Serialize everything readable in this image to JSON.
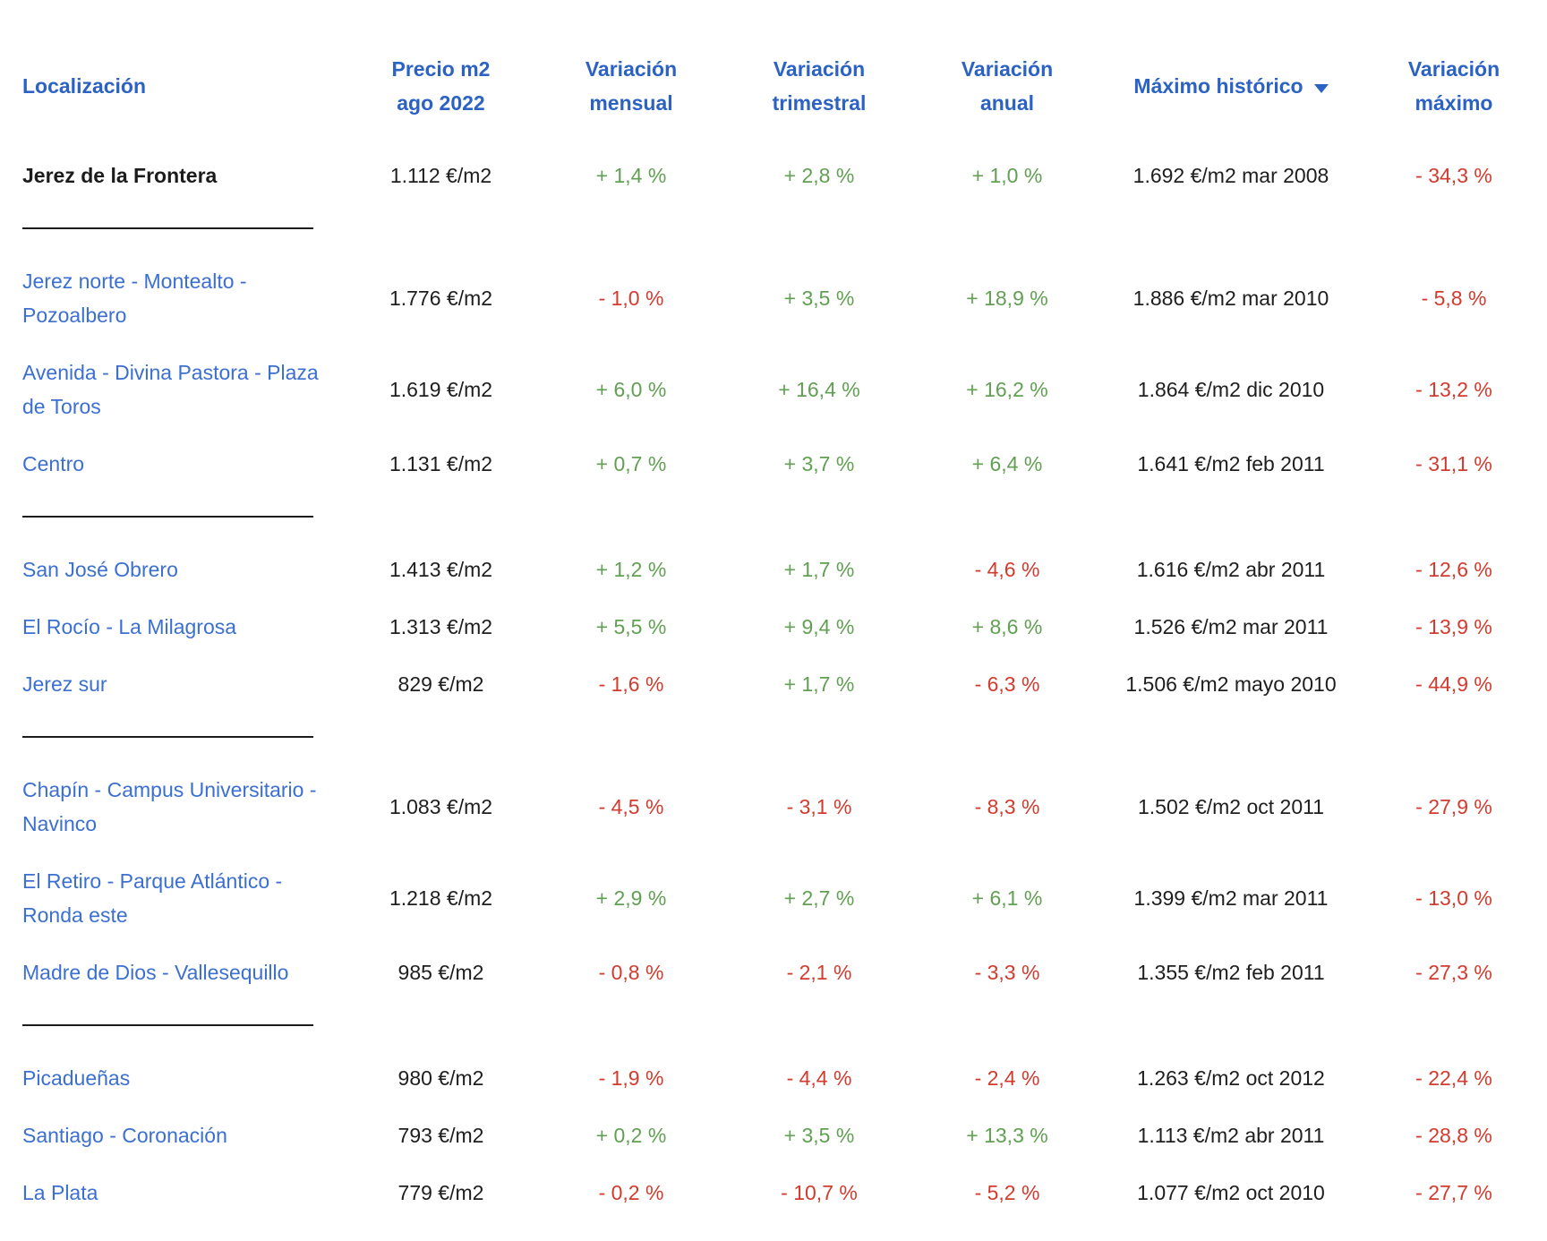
{
  "colors": {
    "header_blue": "#2b62c4",
    "link_blue": "#3b6fd1",
    "positive_green": "#61a052",
    "negative_red": "#d23b2e",
    "text_dark": "#1e1e1e"
  },
  "icons": {
    "sort_desc": "▼"
  },
  "table": {
    "headers": {
      "localizacion": "Localización",
      "precio_line1": "Precio m2",
      "precio_line2": "ago 2022",
      "mensual_line1": "Variación",
      "mensual_line2": "mensual",
      "trimestral_line1": "Variación",
      "trimestral_line2": "trimestral",
      "anual_line1": "Variación",
      "anual_line2": "anual",
      "maximo": "Máximo histórico",
      "var_maximo_line1": "Variación",
      "var_maximo_line2": "máximo"
    },
    "groups": [
      {
        "rows": [
          {
            "name": "Jerez de la Frontera",
            "is_city": true,
            "price": "1.112 €/m2",
            "monthly": "+ 1,4 %",
            "quarterly": "+ 2,8 %",
            "annual": "+ 1,0 %",
            "max": "1.692 €/m2 mar 2008",
            "max_var": "- 34,3 %"
          }
        ]
      },
      {
        "rows": [
          {
            "name": "Jerez norte - Montealto - Pozoalbero",
            "is_city": false,
            "price": "1.776 €/m2",
            "monthly": "- 1,0 %",
            "quarterly": "+ 3,5 %",
            "annual": "+ 18,9 %",
            "max": "1.886 €/m2 mar 2010",
            "max_var": "- 5,8 %"
          },
          {
            "name": "Avenida - Divina Pastora - Plaza de Toros",
            "is_city": false,
            "price": "1.619 €/m2",
            "monthly": "+ 6,0 %",
            "quarterly": "+ 16,4 %",
            "annual": "+ 16,2 %",
            "max": "1.864 €/m2 dic 2010",
            "max_var": "- 13,2 %"
          },
          {
            "name": "Centro",
            "is_city": false,
            "price": "1.131 €/m2",
            "monthly": "+ 0,7 %",
            "quarterly": "+ 3,7 %",
            "annual": "+ 6,4 %",
            "max": "1.641 €/m2 feb 2011",
            "max_var": "- 31,1 %"
          }
        ]
      },
      {
        "rows": [
          {
            "name": "San José Obrero",
            "is_city": false,
            "price": "1.413 €/m2",
            "monthly": "+ 1,2 %",
            "quarterly": "+ 1,7 %",
            "annual": "- 4,6 %",
            "max": "1.616 €/m2 abr 2011",
            "max_var": "- 12,6 %"
          },
          {
            "name": "El Rocío - La Milagrosa",
            "is_city": false,
            "price": "1.313 €/m2",
            "monthly": "+ 5,5 %",
            "quarterly": "+ 9,4 %",
            "annual": "+ 8,6 %",
            "max": "1.526 €/m2 mar 2011",
            "max_var": "- 13,9 %"
          },
          {
            "name": "Jerez sur",
            "is_city": false,
            "price": "829 €/m2",
            "monthly": "- 1,6 %",
            "quarterly": "+ 1,7 %",
            "annual": "- 6,3 %",
            "max": "1.506 €/m2 mayo 2010",
            "max_var": "- 44,9 %"
          }
        ]
      },
      {
        "rows": [
          {
            "name": "Chapín - Campus Universitario - Navinco",
            "is_city": false,
            "price": "1.083 €/m2",
            "monthly": "- 4,5 %",
            "quarterly": "- 3,1 %",
            "annual": "- 8,3 %",
            "max": "1.502 €/m2 oct 2011",
            "max_var": "- 27,9 %"
          },
          {
            "name": "El Retiro - Parque Atlántico - Ronda este",
            "is_city": false,
            "price": "1.218 €/m2",
            "monthly": "+ 2,9 %",
            "quarterly": "+ 2,7 %",
            "annual": "+ 6,1 %",
            "max": "1.399 €/m2 mar 2011",
            "max_var": "- 13,0 %"
          },
          {
            "name": "Madre de Dios - Vallesequillo",
            "is_city": false,
            "price": "985 €/m2",
            "monthly": "- 0,8 %",
            "quarterly": "- 2,1 %",
            "annual": "- 3,3 %",
            "max": "1.355 €/m2 feb 2011",
            "max_var": "- 27,3 %"
          }
        ]
      },
      {
        "rows": [
          {
            "name": "Picadueñas",
            "is_city": false,
            "price": "980 €/m2",
            "monthly": "- 1,9 %",
            "quarterly": "- 4,4 %",
            "annual": "- 2,4 %",
            "max": "1.263 €/m2 oct 2012",
            "max_var": "- 22,4 %"
          },
          {
            "name": "Santiago - Coronación",
            "is_city": false,
            "price": "793 €/m2",
            "monthly": "+ 0,2 %",
            "quarterly": "+ 3,5 %",
            "annual": "+ 13,3 %",
            "max": "1.113 €/m2 abr 2011",
            "max_var": "- 28,8 %"
          },
          {
            "name": "La Plata",
            "is_city": false,
            "price": "779 €/m2",
            "monthly": "- 0,2 %",
            "quarterly": "- 10,7 %",
            "annual": "- 5,2 %",
            "max": "1.077 €/m2 oct 2010",
            "max_var": "- 27,7 %"
          }
        ]
      }
    ]
  }
}
